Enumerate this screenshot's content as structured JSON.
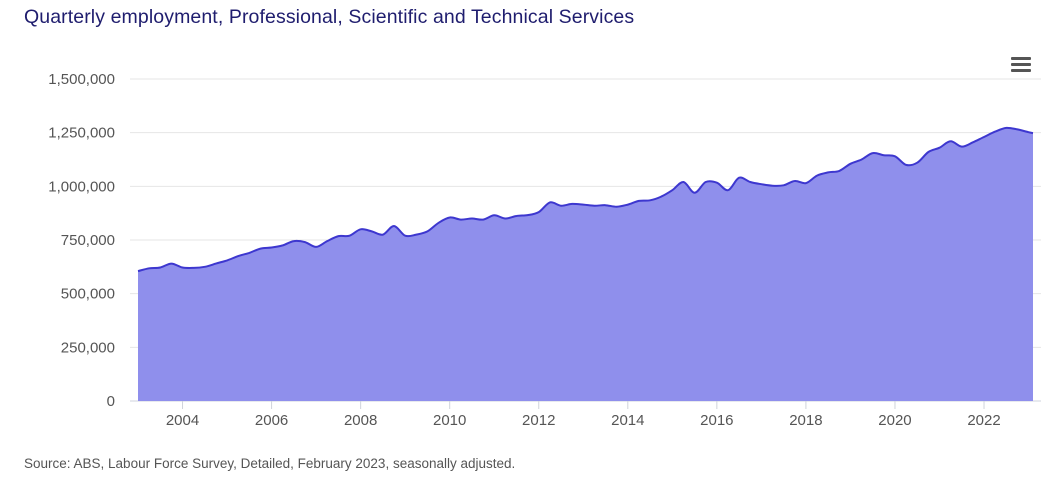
{
  "title": "Quarterly employment, Professional, Scientific and Technical Services",
  "source": "Source: ABS, Labour Force Survey, Detailed, February 2023, seasonally adjusted.",
  "menu_icon": "hamburger-menu-icon",
  "colors": {
    "area_fill": "#8f8fec",
    "line": "#3d37cf",
    "title": "#1f1d6e"
  },
  "chart_data": {
    "type": "area",
    "xlim": [
      2003.0,
      2023.1
    ],
    "ylim": [
      0,
      1500000
    ],
    "yticks": [
      0,
      250000,
      500000,
      750000,
      1000000,
      1250000,
      1500000
    ],
    "ytick_labels": [
      "0",
      "250,000",
      "500,000",
      "750,000",
      "1,000,000",
      "1,250,000",
      "1,500,000"
    ],
    "xticks": [
      2004,
      2006,
      2008,
      2010,
      2012,
      2014,
      2016,
      2018,
      2020,
      2022
    ],
    "xtick_labels": [
      "2004",
      "2006",
      "2008",
      "2010",
      "2012",
      "2014",
      "2016",
      "2018",
      "2020",
      "2022"
    ],
    "grid": true,
    "legend": "none",
    "series": [
      {
        "x": [
          2003.0,
          2003.25,
          2003.5,
          2003.75,
          2004.0,
          2004.25,
          2004.5,
          2004.75,
          2005.0,
          2005.25,
          2005.5,
          2005.75,
          2006.0,
          2006.25,
          2006.5,
          2006.75,
          2007.0,
          2007.25,
          2007.5,
          2007.75,
          2008.0,
          2008.25,
          2008.5,
          2008.75,
          2009.0,
          2009.25,
          2009.5,
          2009.75,
          2010.0,
          2010.25,
          2010.5,
          2010.75,
          2011.0,
          2011.25,
          2011.5,
          2011.75,
          2012.0,
          2012.25,
          2012.5,
          2012.75,
          2013.0,
          2013.25,
          2013.5,
          2013.75,
          2014.0,
          2014.25,
          2014.5,
          2014.75,
          2015.0,
          2015.25,
          2015.5,
          2015.75,
          2016.0,
          2016.25,
          2016.5,
          2016.75,
          2017.0,
          2017.25,
          2017.5,
          2017.75,
          2018.0,
          2018.25,
          2018.5,
          2018.75,
          2019.0,
          2019.25,
          2019.5,
          2019.75,
          2020.0,
          2020.25,
          2020.5,
          2020.75,
          2021.0,
          2021.25,
          2021.5,
          2021.75,
          2022.0,
          2022.25,
          2022.5,
          2022.75,
          2023.0,
          2023.1
        ],
        "values": [
          605000,
          618000,
          622000,
          640000,
          622000,
          620000,
          625000,
          640000,
          655000,
          675000,
          690000,
          710000,
          715000,
          725000,
          745000,
          740000,
          718000,
          745000,
          768000,
          770000,
          800000,
          790000,
          775000,
          815000,
          770000,
          775000,
          790000,
          830000,
          855000,
          845000,
          850000,
          845000,
          865000,
          850000,
          862000,
          866000,
          880000,
          925000,
          910000,
          918000,
          915000,
          910000,
          912000,
          905000,
          915000,
          932000,
          935000,
          952000,
          982000,
          1020000,
          970000,
          1020000,
          1017000,
          982000,
          1040000,
          1020000,
          1010000,
          1003000,
          1005000,
          1025000,
          1015000,
          1050000,
          1065000,
          1072000,
          1105000,
          1125000,
          1155000,
          1145000,
          1140000,
          1100000,
          1110000,
          1160000,
          1180000,
          1210000,
          1185000,
          1205000,
          1230000,
          1255000,
          1272000,
          1265000,
          1252000,
          1248000
        ]
      }
    ]
  }
}
